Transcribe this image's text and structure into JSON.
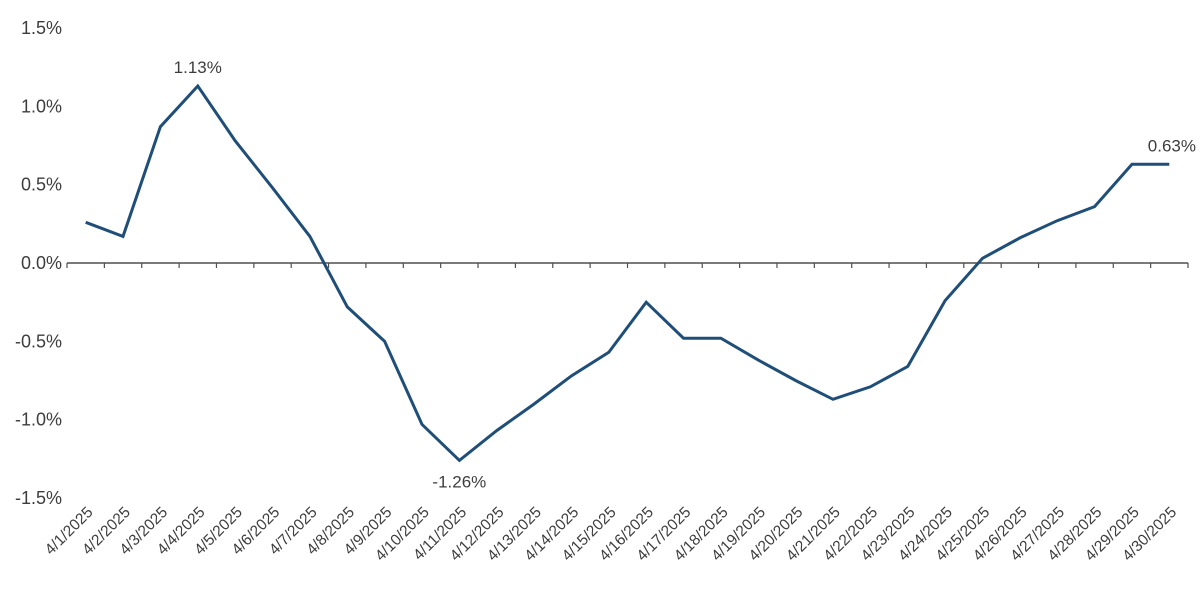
{
  "chart_data": {
    "type": "line",
    "title": "",
    "xlabel": "",
    "ylabel": "",
    "categories": [
      "4/1/2025",
      "4/2/2025",
      "4/3/2025",
      "4/4/2025",
      "4/5/2025",
      "4/6/2025",
      "4/7/2025",
      "4/8/2025",
      "4/9/2025",
      "4/10/2025",
      "4/11/2025",
      "4/12/2025",
      "4/13/2025",
      "4/14/2025",
      "4/15/2025",
      "4/16/2025",
      "4/17/2025",
      "4/18/2025",
      "4/19/2025",
      "4/20/2025",
      "4/21/2025",
      "4/22/2025",
      "4/23/2025",
      "4/24/2025",
      "4/25/2025",
      "4/26/2025",
      "4/27/2025",
      "4/28/2025",
      "4/29/2025",
      "4/30/2025"
    ],
    "values": [
      0.26,
      0.17,
      0.87,
      1.13,
      0.78,
      0.48,
      0.17,
      -0.28,
      -0.5,
      -1.03,
      -1.26,
      -1.07,
      -0.9,
      -0.72,
      -0.57,
      -0.25,
      -0.48,
      -0.48,
      -0.62,
      -0.75,
      -0.87,
      -0.79,
      -0.66,
      -0.24,
      0.03,
      0.16,
      0.27,
      0.36,
      0.63,
      0.63
    ],
    "ylim": [
      -1.5,
      1.5
    ],
    "yticks": [
      1.5,
      1.0,
      0.5,
      0.0,
      -0.5,
      -1.0,
      -1.5
    ],
    "ytick_labels": [
      "1.5%",
      "1.0%",
      "0.5%",
      "0.0%",
      "-0.5%",
      "-1.0%",
      "-1.5%"
    ],
    "grid": "off",
    "legend": "none",
    "line_color": "#1f4e79",
    "axis_color": "#4f4f4f",
    "text_color": "#3d3d3d",
    "annotations": [
      {
        "category": "4/4/2025",
        "index": 3,
        "text": "1.13%",
        "position": "above"
      },
      {
        "category": "4/11/2025",
        "index": 10,
        "text": "-1.26%",
        "position": "below"
      },
      {
        "category": "4/30/2025",
        "index": 29,
        "text": "0.63%",
        "position": "above"
      }
    ]
  }
}
